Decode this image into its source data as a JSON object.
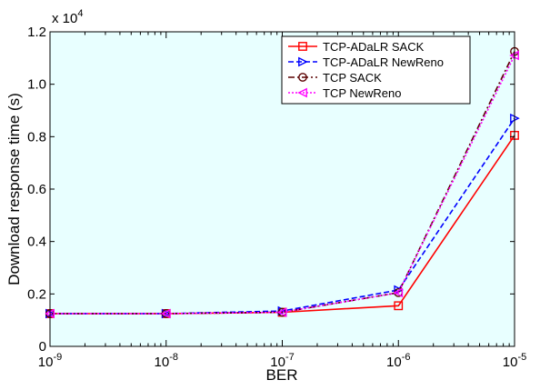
{
  "chart_data": {
    "type": "line",
    "xlabel": "BER",
    "ylabel": "Download response time (s)",
    "y_multiplier_label": "x 10",
    "y_multiplier_exponent": "4",
    "x_scale": "log",
    "x_tick_base": "10",
    "x_tick_exponents": [
      "-9",
      "-8",
      "-7",
      "-6",
      "-5"
    ],
    "x": [
      1e-09,
      1e-08,
      1e-07,
      1e-06,
      1e-05
    ],
    "y_ticks": [
      "0",
      "0.2",
      "0.4",
      "0.6",
      "0.8",
      "1.0",
      "1.2"
    ],
    "ylim": [
      0,
      12000
    ],
    "grid": false,
    "legend_position": "top-right",
    "background_color": "#e8ffff",
    "series": [
      {
        "name": "TCP-ADaLR SACK",
        "color": "#ff0000",
        "dash": "solid",
        "marker": "square",
        "values": [
          1250,
          1250,
          1300,
          1550,
          8050
        ]
      },
      {
        "name": "TCP-ADaLR NewReno",
        "color": "#0000ff",
        "dash": "dashed",
        "marker": "triangle-right",
        "values": [
          1250,
          1250,
          1350,
          2150,
          8700
        ]
      },
      {
        "name": "TCP SACK",
        "color": "#5a0000",
        "dash": "dashdot",
        "marker": "circle",
        "values": [
          1250,
          1250,
          1300,
          2050,
          11250
        ]
      },
      {
        "name": "TCP NewReno",
        "color": "#ff00ff",
        "dash": "dotted",
        "marker": "triangle-left",
        "values": [
          1250,
          1250,
          1300,
          2050,
          11100
        ]
      }
    ]
  }
}
